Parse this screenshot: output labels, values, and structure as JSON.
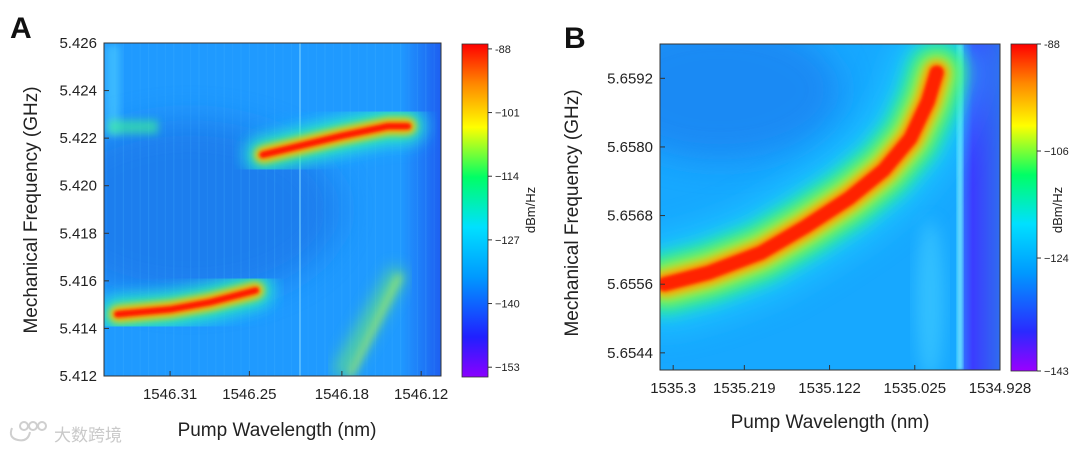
{
  "watermark": {
    "text": "大数跨境",
    "icon": "watermark-logo-icon"
  },
  "chart_data": [
    {
      "panel": "A",
      "type": "heatmap",
      "xlabel": "Pump Wavelength (nm)",
      "ylabel": "Mechanical Frequency (GHz)",
      "x_ticks": [
        "1546.31",
        "1546.25",
        "1546.18",
        "1546.12"
      ],
      "x_tick_values": [
        1546.31,
        1546.25,
        1546.18,
        1546.12
      ],
      "xlim": [
        1546.36,
        1546.105
      ],
      "y_ticks": [
        "5.412",
        "5.414",
        "5.416",
        "5.418",
        "5.420",
        "5.422",
        "5.424",
        "5.426"
      ],
      "y_tick_values": [
        5.412,
        5.414,
        5.416,
        5.418,
        5.42,
        5.422,
        5.424,
        5.426
      ],
      "ylim": [
        5.412,
        5.426
      ],
      "colorbar": {
        "title": "dBm/Hz",
        "ticks": [
          "-88",
          "−101",
          "−114",
          "−127",
          "−140",
          "−153"
        ],
        "tick_values": [
          -88,
          -101,
          -114,
          -127,
          -140,
          -153
        ],
        "range": [
          -155,
          -87
        ]
      },
      "ridges": [
        {
          "name": "lower-branch",
          "points": [
            [
              1546.35,
              5.4146
            ],
            [
              1546.31,
              5.4148
            ],
            [
              1546.28,
              5.4151
            ],
            [
              1546.245,
              5.4156
            ]
          ]
        },
        {
          "name": "upper-branch",
          "points": [
            [
              1546.24,
              5.4213
            ],
            [
              1546.21,
              5.4217
            ],
            [
              1546.18,
              5.4221
            ],
            [
              1546.145,
              5.4225
            ],
            [
              1546.13,
              5.4225
            ]
          ]
        }
      ]
    },
    {
      "panel": "B",
      "type": "heatmap",
      "xlabel": "Pump Wavelength (nm)",
      "ylabel": "Mechanical Frequency (GHz)",
      "x_ticks": [
        "1535.3",
        "1535.219",
        "1535.122",
        "1535.025",
        "1534.928"
      ],
      "x_tick_values": [
        1535.3,
        1535.219,
        1535.122,
        1535.025,
        1534.928
      ],
      "xlim": [
        1535.315,
        1534.928
      ],
      "y_ticks": [
        "5.6544",
        "5.6556",
        "5.6568",
        "5.6580",
        "5.6592"
      ],
      "y_tick_values": [
        5.6544,
        5.6556,
        5.6568,
        5.658,
        5.6592
      ],
      "ylim": [
        5.6541,
        5.6598
      ],
      "colorbar": {
        "title": "dBm/Hz",
        "ticks": [
          "-88",
          "−106",
          "−124",
          "−143"
        ],
        "tick_values": [
          -88,
          -106,
          -124,
          -143
        ],
        "range": [
          -143,
          -88
        ]
      },
      "ridges": [
        {
          "name": "main-branch",
          "points": [
            [
              1535.31,
              5.6556
            ],
            [
              1535.26,
              5.6558
            ],
            [
              1535.2,
              5.65615
            ],
            [
              1535.15,
              5.6566
            ],
            [
              1535.1,
              5.6571
            ],
            [
              1535.06,
              5.6576
            ],
            [
              1535.03,
              5.65815
            ],
            [
              1535.01,
              5.6588
            ],
            [
              1535.0,
              5.6593
            ]
          ]
        }
      ]
    }
  ]
}
